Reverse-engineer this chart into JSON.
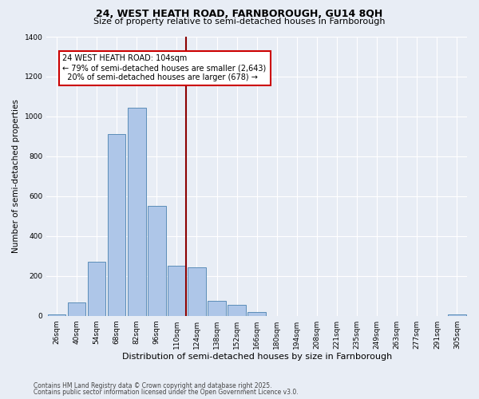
{
  "title1": "24, WEST HEATH ROAD, FARNBOROUGH, GU14 8QH",
  "title2": "Size of property relative to semi-detached houses in Farnborough",
  "xlabel": "Distribution of semi-detached houses by size in Farnborough",
  "ylabel": "Number of semi-detached properties",
  "bin_labels": [
    "26sqm",
    "40sqm",
    "54sqm",
    "68sqm",
    "82sqm",
    "96sqm",
    "110sqm",
    "124sqm",
    "138sqm",
    "152sqm",
    "166sqm",
    "180sqm",
    "194sqm",
    "208sqm",
    "221sqm",
    "235sqm",
    "249sqm",
    "263sqm",
    "277sqm",
    "291sqm",
    "305sqm"
  ],
  "bar_values": [
    8,
    65,
    270,
    910,
    1045,
    550,
    250,
    245,
    75,
    55,
    20,
    0,
    0,
    0,
    0,
    0,
    0,
    0,
    0,
    0,
    8
  ],
  "bar_color": "#aec6e8",
  "bar_edge_color": "#5b8db8",
  "property_label": "24 WEST HEATH ROAD: 104sqm",
  "pct_smaller": 79,
  "n_smaller": 2643,
  "pct_larger": 20,
  "n_larger": 678,
  "vline_color": "#8b0000",
  "annotation_box_edge_color": "#cc0000",
  "background_color": "#e8edf5",
  "ylim": [
    0,
    1400
  ],
  "footer1": "Contains HM Land Registry data © Crown copyright and database right 2025.",
  "footer2": "Contains public sector information licensed under the Open Government Licence v3.0."
}
